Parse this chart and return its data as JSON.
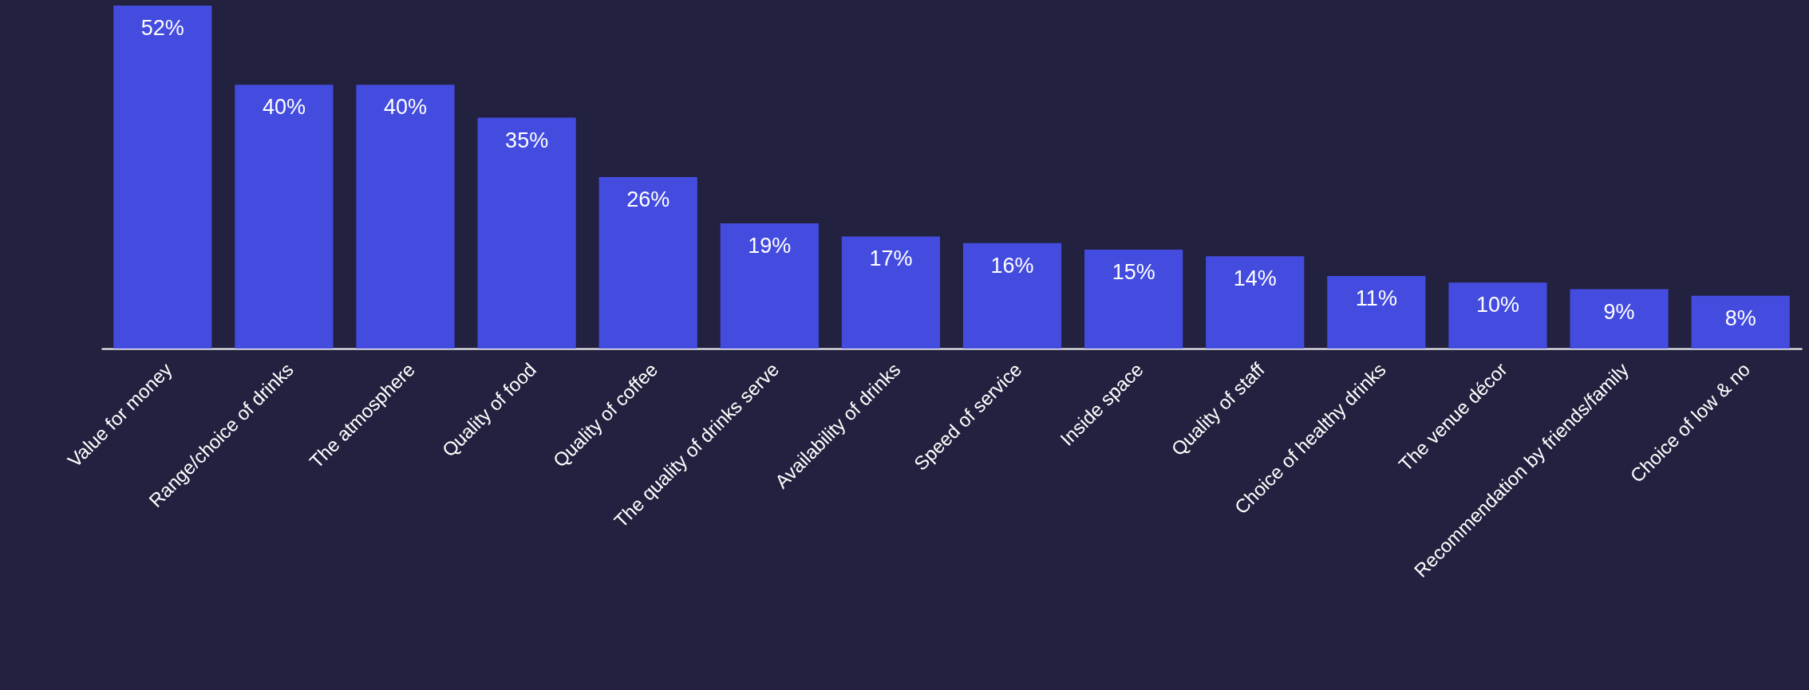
{
  "chart_data": {
    "type": "bar",
    "categories": [
      "Value for money",
      "Range/choice of drinks",
      "The atmosphere",
      "Quality of food",
      "Quality of coffee",
      "The quality of drinks serve",
      "Availability of drinks",
      "Speed of service",
      "Inside space",
      "Quality of staff",
      "Choice of healthy drinks",
      "The venue décor",
      "Recommendation by friends/family",
      "Choice of low & no"
    ],
    "values": [
      52,
      40,
      40,
      35,
      26,
      19,
      17,
      16,
      15,
      14,
      11,
      10,
      9,
      8
    ],
    "value_labels": [
      "52%",
      "40%",
      "40%",
      "35%",
      "26%",
      "19%",
      "17%",
      "16%",
      "15%",
      "14%",
      "11%",
      "10%",
      "9%",
      "8%"
    ],
    "color": "#444ce0"
  }
}
